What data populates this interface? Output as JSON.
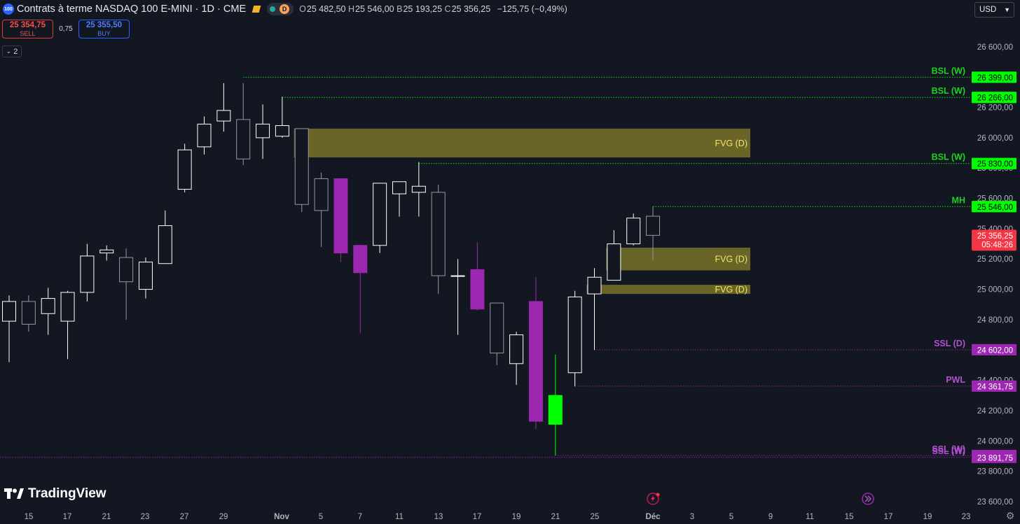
{
  "header": {
    "symbol_badge": "100",
    "title": "Contrats à terme NASDAQ 100 E-MINI · 1D · CME",
    "interval_badge": "D",
    "open_key": "O",
    "open": "25 482,50",
    "high_key": "H",
    "high": "25 546,00",
    "low_key": "B",
    "low": "25 193,25",
    "close_key": "C",
    "close": "25 356,25",
    "change": "−125,75 (−0,49%)"
  },
  "trade": {
    "sell_price": "25 354,75",
    "sell_label": "SELL",
    "spread": "0,75",
    "buy_price": "25 355,50",
    "buy_label": "BUY"
  },
  "indicator_toggle": "2",
  "currency": "USD",
  "brand": "TradingView",
  "colors": {
    "background": "#131722",
    "candle_up_border": "#ffffff",
    "candle_down_border": "#9598a1",
    "purple_candle": "#9c27b0",
    "green_candle": "#00ff00",
    "bsl_green": "#00ff00",
    "ssl_purple": "#9c27b0",
    "fvg_fill": "#807829",
    "fvg_text": "#f5e66b",
    "last_price_red": "#f23645"
  },
  "chart_data": {
    "type": "candlestick",
    "y_ticks": [
      "26 600,00",
      "26 400,00",
      "26 200,00",
      "26 000,00",
      "25 800,00",
      "25 600,00",
      "25 400,00",
      "25 200,00",
      "25 000,00",
      "24 800,00",
      "24 600,00",
      "24 400,00",
      "24 200,00",
      "24 000,00",
      "23 800,00",
      "23 600,00"
    ],
    "ylim": [
      23540,
      26770
    ],
    "x_ticks": [
      "15",
      "17",
      "21",
      "23",
      "27",
      "29",
      "Nov",
      "5",
      "7",
      "11",
      "13",
      "17",
      "19",
      "21",
      "25",
      "Déc",
      "3",
      "5",
      "9",
      "11",
      "15",
      "17",
      "19",
      "23"
    ],
    "candles": [
      {
        "o": 24790,
        "h": 24960,
        "l": 24520,
        "c": 24920
      },
      {
        "o": 24920,
        "h": 24960,
        "l": 24720,
        "c": 24770
      },
      {
        "o": 24840,
        "h": 25010,
        "l": 24700,
        "c": 24940
      },
      {
        "o": 24790,
        "h": 24990,
        "l": 24540,
        "c": 24980
      },
      {
        "o": 24980,
        "h": 25300,
        "l": 24920,
        "c": 25220
      },
      {
        "o": 25240,
        "h": 25290,
        "l": 25190,
        "c": 25260
      },
      {
        "o": 25210,
        "h": 25270,
        "l": 24800,
        "c": 25050
      },
      {
        "o": 25000,
        "h": 25210,
        "l": 24940,
        "c": 25180
      },
      {
        "o": 25170,
        "h": 25520,
        "l": 25170,
        "c": 25420
      },
      {
        "o": 25660,
        "h": 25960,
        "l": 25640,
        "c": 25920
      },
      {
        "o": 25940,
        "h": 26140,
        "l": 25890,
        "c": 26090
      },
      {
        "o": 26110,
        "h": 26360,
        "l": 26040,
        "c": 26180
      },
      {
        "o": 26120,
        "h": 26360,
        "l": 25820,
        "c": 25860
      },
      {
        "o": 26000,
        "h": 26220,
        "l": 25860,
        "c": 26090
      },
      {
        "o": 26010,
        "h": 26270,
        "l": 26000,
        "c": 26080
      },
      {
        "o": 26060,
        "h": 26050,
        "l": 25510,
        "c": 25560
      },
      {
        "o": 25730,
        "h": 25770,
        "l": 25280,
        "c": 25520
      },
      {
        "o": 25730,
        "h": 25730,
        "l": 25180,
        "c": 25240
      },
      {
        "o": 25290,
        "h": 25290,
        "l": 24710,
        "c": 25110
      },
      {
        "o": 25290,
        "h": 25690,
        "l": 25240,
        "c": 25700
      },
      {
        "o": 25630,
        "h": 25710,
        "l": 25480,
        "c": 25710
      },
      {
        "o": 25640,
        "h": 25840,
        "l": 25480,
        "c": 25680
      },
      {
        "o": 25640,
        "h": 25690,
        "l": 24970,
        "c": 25090
      },
      {
        "o": 25090,
        "h": 25200,
        "l": 24700,
        "c": 25090
      },
      {
        "o": 25130,
        "h": 25310,
        "l": 24860,
        "c": 24870
      },
      {
        "o": 24910,
        "h": 24910,
        "l": 24500,
        "c": 24580
      },
      {
        "o": 24510,
        "h": 24720,
        "l": 24370,
        "c": 24700
      },
      {
        "o": 24920,
        "h": 25080,
        "l": 24080,
        "c": 24130
      },
      {
        "o": 24110,
        "h": 24570,
        "l": 23905,
        "c": 24300
      },
      {
        "o": 24450,
        "h": 24990,
        "l": 24360,
        "c": 24950
      },
      {
        "o": 24970,
        "h": 25140,
        "l": 24600,
        "c": 25080
      },
      {
        "o": 25060,
        "h": 25390,
        "l": 25060,
        "c": 25300
      },
      {
        "o": 25300,
        "h": 25500,
        "l": 25290,
        "c": 25470
      },
      {
        "o": 25482.5,
        "h": 25546,
        "l": 25193.25,
        "c": 25356.25
      }
    ],
    "special_candles": {
      "purple": [
        17,
        18,
        24,
        27
      ],
      "green": [
        28
      ]
    },
    "levels": [
      {
        "label": "BSL (W)",
        "value": 26399,
        "value_text": "26 399,00",
        "kind": "bsl",
        "from_index": 12
      },
      {
        "label": "BSL (W)",
        "value": 26266,
        "value_text": "26 266,00",
        "kind": "bsl",
        "from_index": 14
      },
      {
        "label": "BSL (W)",
        "value": 25830,
        "value_text": "25 830,00",
        "kind": "bsl",
        "from_index": 21
      },
      {
        "label": "MH",
        "value": 25546,
        "value_text": "25 546,00",
        "kind": "bsl",
        "from_index": 33
      },
      {
        "label": "SSL (D)",
        "value": 24602,
        "value_text": "24 602,00",
        "kind": "ssl",
        "from_index": 30
      },
      {
        "label": "PWL",
        "value": 24361.75,
        "value_text": "24 361,75",
        "kind": "ssl",
        "from_index": 29
      },
      {
        "label": "SSL (W)",
        "value": 23904.5,
        "value_text": "23 904,50",
        "kind": "ssl",
        "from_index": 28
      },
      {
        "label": "SSL (W)",
        "value": 23891.75,
        "value_text": "23 891,75",
        "kind": "ssl",
        "from_index": -1
      }
    ],
    "fvg_zones": [
      {
        "label": "FVG (D)",
        "top": 26060,
        "bottom": 25870,
        "from_index": 15
      },
      {
        "label": "FVG (D)",
        "top": 25275,
        "bottom": 25125,
        "from_index": 31
      },
      {
        "label": "FVG (D)",
        "top": 25030,
        "bottom": 24970,
        "from_index": 30
      }
    ],
    "last_price": {
      "value": 25356.25,
      "value_text": "25 356,25",
      "countdown": "05:48:26"
    }
  }
}
